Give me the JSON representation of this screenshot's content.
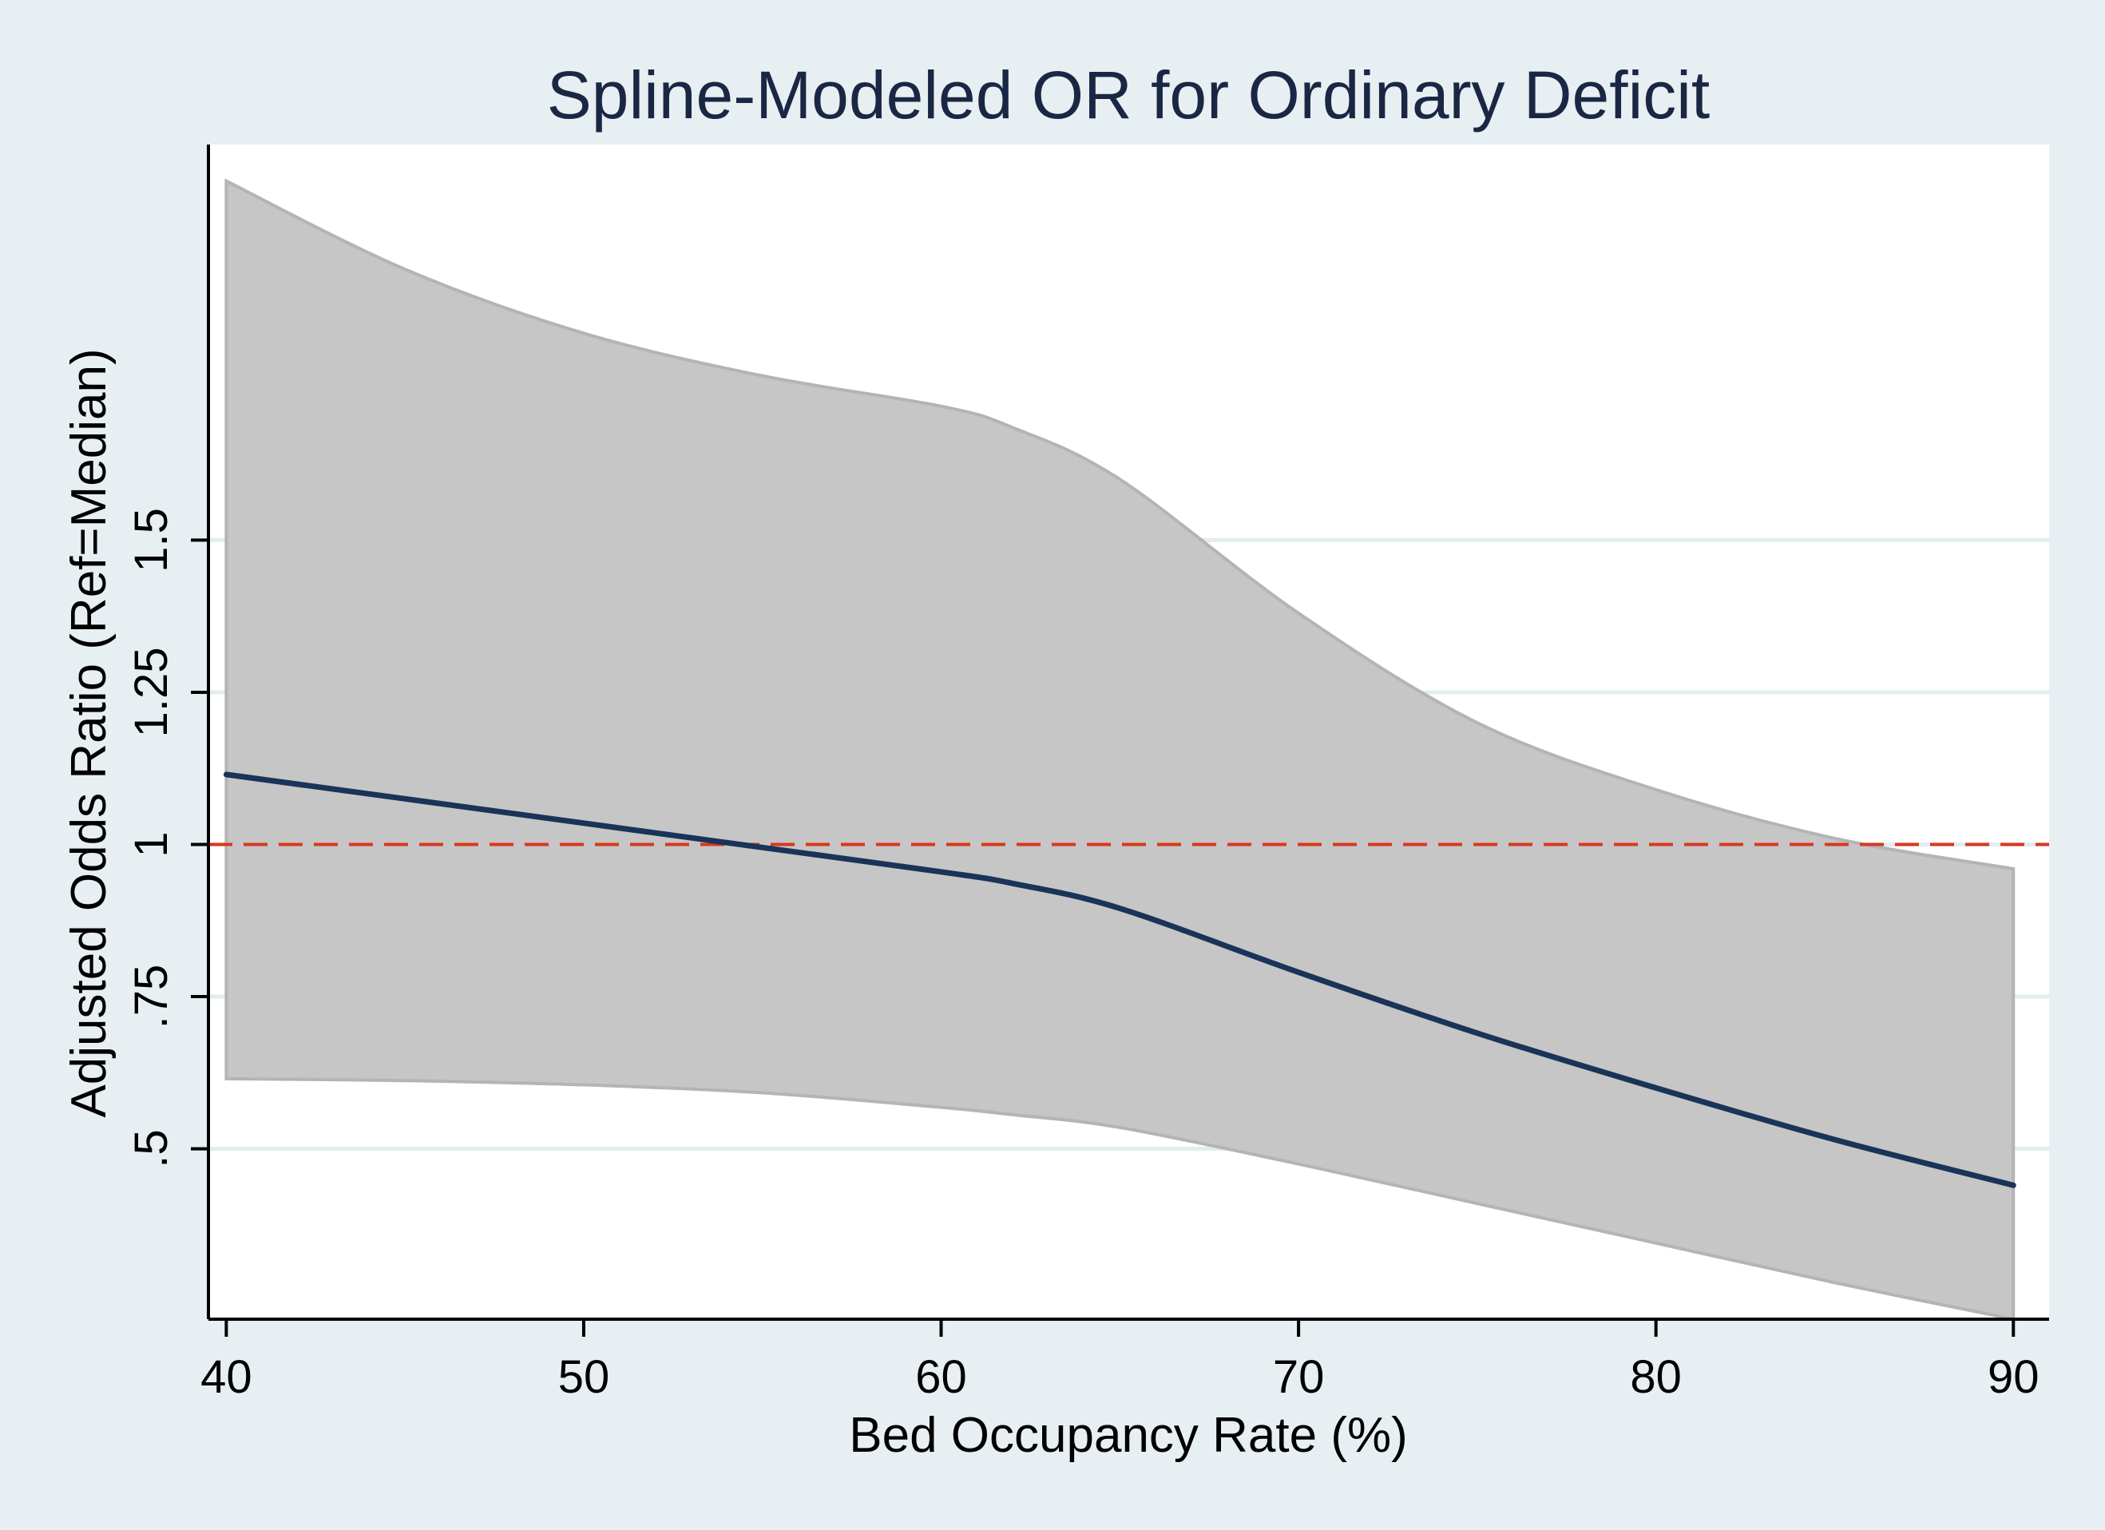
{
  "chart_data": {
    "type": "line",
    "title": "Spline-Modeled OR for Ordinary Deficit",
    "xlabel": "Bed Occupancy Rate (%)",
    "ylabel": "Adjusted Odds Ratio (Ref=Median)",
    "xlim": [
      39.5,
      91
    ],
    "ylim": [
      0.22,
      2.15
    ],
    "x_ticks": [
      40,
      50,
      60,
      70,
      80,
      90
    ],
    "x_tick_labels": [
      "40",
      "50",
      "60",
      "70",
      "80",
      "90"
    ],
    "y_ticks": [
      0.5,
      0.75,
      1,
      1.25,
      1.5
    ],
    "y_tick_labels": [
      ".5",
      ".75",
      "1",
      "1.25",
      "1.5"
    ],
    "grid": "horizontal",
    "reference_line": {
      "y": 1,
      "style": "dashed",
      "color": "#d9381e"
    },
    "series": [
      {
        "role": "estimate",
        "color": "#1a3358",
        "x": [
          40,
          45,
          50,
          55,
          60,
          62,
          65,
          70,
          75,
          80,
          85,
          90
        ],
        "y": [
          1.115,
          1.075,
          1.035,
          0.995,
          0.955,
          0.936,
          0.895,
          0.79,
          0.69,
          0.6,
          0.515,
          0.44
        ]
      },
      {
        "role": "ci-band",
        "color": "#c6c6c6",
        "x": [
          40,
          45,
          50,
          55,
          60,
          62,
          65,
          70,
          75,
          80,
          85,
          90
        ],
        "lower": [
          0.615,
          0.612,
          0.605,
          0.592,
          0.568,
          0.556,
          0.535,
          0.475,
          0.41,
          0.345,
          0.28,
          0.22
        ],
        "upper": [
          2.09,
          1.945,
          1.84,
          1.77,
          1.72,
          1.685,
          1.6,
          1.38,
          1.2,
          1.09,
          1.01,
          0.96
        ]
      }
    ]
  },
  "colors": {
    "page_background": "#e8eff2",
    "plot_background": "#ffffff",
    "grid": "#e3ecef",
    "axis": "#000000",
    "title": "#1a2744"
  }
}
